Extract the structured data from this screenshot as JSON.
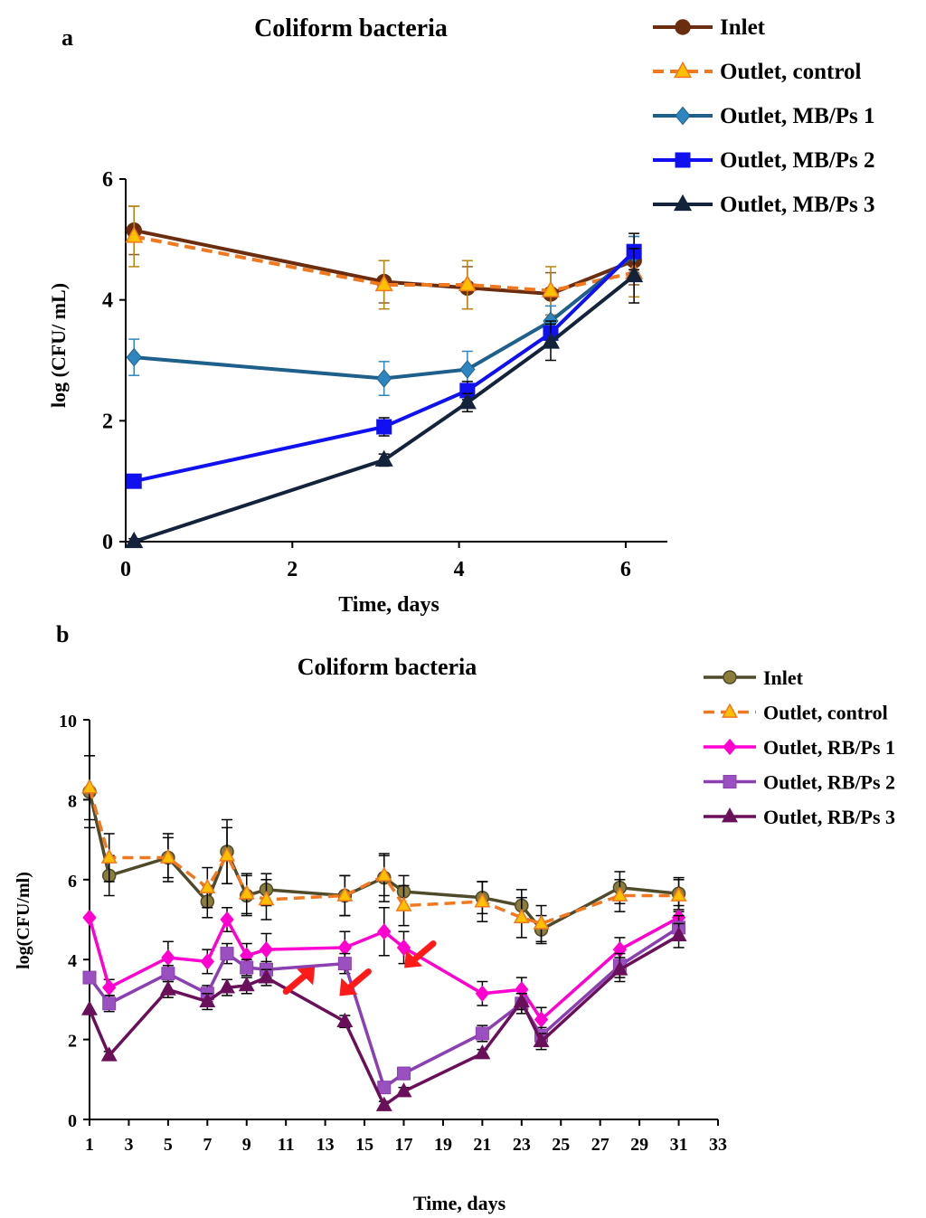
{
  "panel_labels": {
    "a": "a",
    "b": "b"
  },
  "chart_data": [
    {
      "id": "a",
      "type": "line",
      "title": "Coliform bacteria",
      "xlabel": "Time, days",
      "ylabel": "log (CFU/ mL)",
      "xlim": [
        0,
        6.5
      ],
      "ylim": [
        0,
        6
      ],
      "xticks": [
        0,
        2,
        4,
        6
      ],
      "yticks": [
        0,
        2,
        4,
        6
      ],
      "grid": false,
      "legend_position": "top-right",
      "x": [
        0.1,
        3.1,
        4.1,
        5.1,
        6.1
      ],
      "series": [
        {
          "name": "Inlet",
          "color": "#6B2D0F",
          "marker": "circle",
          "dashed": false,
          "values": [
            5.15,
            4.3,
            4.2,
            4.1,
            4.65
          ],
          "errors": [
            0.4,
            0.35,
            0.35,
            0.35,
            0.4
          ],
          "errcolor": "#8B5A2B"
        },
        {
          "name": "Outlet, control",
          "color": "#F07820",
          "marker": "triangle",
          "markerFill": "#FFC000",
          "dashed": true,
          "values": [
            5.05,
            4.25,
            4.25,
            4.15,
            4.45
          ],
          "errors": [
            0.5,
            0.4,
            0.4,
            0.4,
            0.4
          ],
          "errcolor": "#B8860B"
        },
        {
          "name": "Outlet, MB/Ps 1",
          "color": "#1F5F8B",
          "marker": "diamond",
          "markerFill": "#2E86C1",
          "dashed": false,
          "values": [
            3.05,
            2.7,
            2.85,
            3.65,
            4.75
          ],
          "errors": [
            0.3,
            0.28,
            0.3,
            0.25,
            0.3
          ],
          "errcolor": "#2E86C1"
        },
        {
          "name": "Outlet, MB/Ps 2",
          "color": "#1010F0",
          "marker": "square",
          "dashed": false,
          "values": [
            1.0,
            1.9,
            2.5,
            3.45,
            4.8
          ],
          "errors": [
            0.1,
            0.15,
            0.15,
            0.2,
            0.3
          ],
          "errcolor": "#000000"
        },
        {
          "name": "Outlet, MB/Ps 3",
          "color": "#14233C",
          "marker": "triangle",
          "dashed": false,
          "values": [
            0.0,
            1.35,
            2.3,
            3.3,
            4.4
          ],
          "errors": [
            0.05,
            0.1,
            0.15,
            0.3,
            0.45
          ],
          "errcolor": "#000000"
        }
      ]
    },
    {
      "id": "b",
      "type": "line",
      "title": "Coliform bacteria",
      "xlabel": "Time, days",
      "ylabel": "log(CFU/ml)",
      "xlim": [
        1,
        33
      ],
      "ylim": [
        0,
        10
      ],
      "xticks": [
        1,
        3,
        5,
        7,
        9,
        11,
        13,
        15,
        17,
        19,
        21,
        23,
        25,
        27,
        29,
        31,
        33
      ],
      "yticks": [
        0,
        2,
        4,
        6,
        8,
        10
      ],
      "grid": false,
      "legend_position": "top-right",
      "annotations": [
        {
          "type": "red-arrow",
          "x": 11,
          "y": 3.2,
          "direction": "up-right"
        },
        {
          "type": "red-arrow",
          "x": 15.2,
          "y": 3.7,
          "direction": "down-left"
        },
        {
          "type": "red-arrow",
          "x": 18.5,
          "y": 4.4,
          "direction": "down-left"
        }
      ],
      "series": [
        {
          "name": "Inlet",
          "color": "#4F4A2A",
          "marker": "circle",
          "markerFill": "#8B7D3A",
          "dashed": false,
          "x": [
            1,
            2,
            5,
            7,
            8,
            9,
            10,
            14,
            16,
            17,
            21,
            23,
            24,
            28,
            31
          ],
          "values": [
            8.2,
            6.1,
            6.55,
            5.45,
            6.7,
            5.6,
            5.75,
            5.6,
            6.05,
            5.7,
            5.55,
            5.35,
            4.75,
            5.8,
            5.65
          ],
          "errors": [
            0.9,
            0.5,
            0.6,
            0.4,
            0.8,
            0.5,
            0.4,
            0.5,
            0.6,
            0.4,
            0.4,
            0.4,
            0.35,
            0.4,
            0.4
          ],
          "errcolor": "#000000"
        },
        {
          "name": "Outlet, control",
          "color": "#F07820",
          "marker": "triangle",
          "markerFill": "#FFC000",
          "dashed": true,
          "x": [
            1,
            2,
            5,
            7,
            8,
            9,
            10,
            14,
            16,
            17,
            21,
            23,
            24,
            28,
            31
          ],
          "values": [
            8.3,
            6.55,
            6.55,
            5.8,
            6.6,
            5.65,
            5.5,
            5.6,
            6.1,
            5.35,
            5.45,
            5.05,
            4.9,
            5.6,
            5.6
          ],
          "errors": [
            0.8,
            0.6,
            0.5,
            0.5,
            0.7,
            0.5,
            0.5,
            0.5,
            0.5,
            0.5,
            0.5,
            0.5,
            0.45,
            0.4,
            0.4
          ],
          "errcolor": "#000000"
        },
        {
          "name": "Outlet, RB/Ps 1",
          "color": "#FF00D0",
          "marker": "diamond",
          "dashed": false,
          "x": [
            1,
            2,
            5,
            7,
            8,
            9,
            10,
            14,
            16,
            17,
            21,
            23,
            24,
            28,
            31
          ],
          "values": [
            5.05,
            3.3,
            4.05,
            3.95,
            5.0,
            4.1,
            4.25,
            4.3,
            4.7,
            4.3,
            3.15,
            3.25,
            2.5,
            4.25,
            5.05
          ],
          "errors": [
            0,
            0.2,
            0.4,
            0.3,
            0.3,
            0.3,
            0.4,
            0.4,
            0.6,
            0.4,
            0.3,
            0.3,
            0.3,
            0.3,
            0.3
          ],
          "errcolor": "#000000"
        },
        {
          "name": "Outlet, RB/Ps 2",
          "color": "#8C3FB0",
          "marker": "square",
          "markerFill": "#9A50C0",
          "dashed": false,
          "x": [
            1,
            2,
            5,
            7,
            8,
            9,
            10,
            14,
            16,
            17,
            21,
            23,
            24,
            28,
            31
          ],
          "values": [
            3.55,
            2.9,
            3.65,
            3.15,
            4.15,
            3.8,
            3.75,
            3.9,
            0.8,
            1.15,
            2.15,
            2.9,
            2.1,
            3.85,
            4.8
          ],
          "errors": [
            0,
            0.2,
            0.2,
            0.2,
            0.25,
            0.2,
            0.2,
            0.25,
            0.1,
            0.15,
            0.2,
            0.25,
            0.2,
            0.3,
            0.3
          ],
          "errcolor": "#000000"
        },
        {
          "name": "Outlet, RB/Ps 3",
          "color": "#6A0F5A",
          "marker": "triangle",
          "dashed": false,
          "x": [
            1,
            2,
            5,
            7,
            8,
            9,
            10,
            14,
            16,
            17,
            21,
            23,
            24,
            28,
            31
          ],
          "values": [
            2.75,
            1.6,
            3.25,
            2.95,
            3.3,
            3.35,
            3.55,
            2.45,
            0.35,
            0.7,
            1.65,
            2.95,
            1.95,
            3.75,
            4.6
          ],
          "errors": [
            0,
            0.1,
            0.2,
            0.2,
            0.2,
            0.2,
            0.2,
            0.15,
            0.1,
            0.1,
            0.1,
            0.2,
            0.2,
            0.3,
            0.3
          ],
          "errcolor": "#000000"
        }
      ]
    }
  ]
}
